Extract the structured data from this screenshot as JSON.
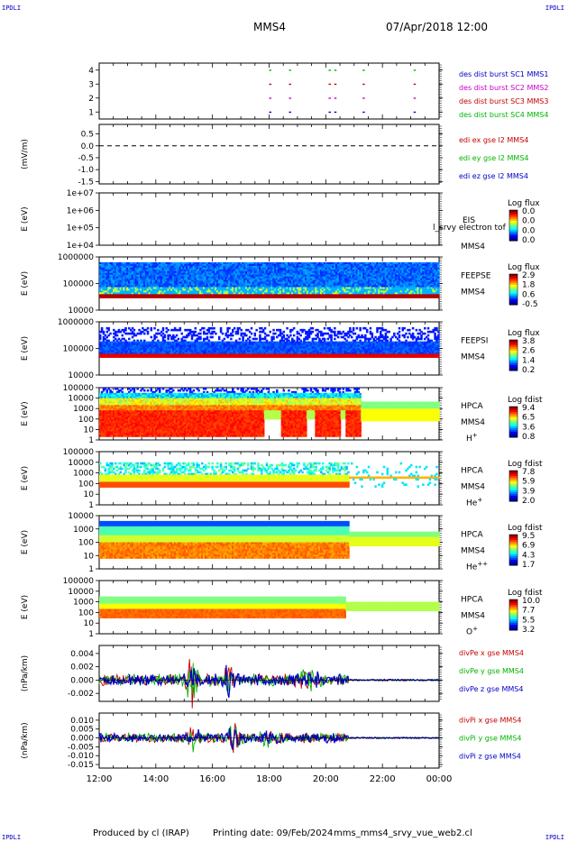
{
  "corner_label": "IPDLI",
  "header": {
    "mission": "MMS4",
    "datetime": "07/Apr/2018 12:00"
  },
  "footer": {
    "produced": "Produced by cl (IRAP)",
    "printing": "Printing date: 09/Feb/2024",
    "file": "mms_mms4_srvy_vue_web2.cl"
  },
  "x_axis": {
    "ticks": [
      "12:00",
      "14:00",
      "16:00",
      "18:00",
      "20:00",
      "22:00",
      "00:00"
    ]
  },
  "chart_data": [
    {
      "type": "scatter",
      "id": "burst",
      "ylim": [
        0.5,
        4.5
      ],
      "yticks": [
        "1",
        "2",
        "3",
        "4"
      ],
      "legend": [
        {
          "text": "des dist burst SC1 MMS1",
          "color": "#0000c8"
        },
        {
          "text": "des dist burst SC2 MMS2",
          "color": "#c800c8"
        },
        {
          "text": "des dist burst SC3 MMS3",
          "color": "#c80000"
        },
        {
          "text": "des dist burst SC4 MMS4",
          "color": "#00b400"
        }
      ],
      "x_hours": [
        18.0,
        18.7,
        20.1,
        20.3,
        21.3,
        23.1
      ]
    },
    {
      "type": "line",
      "id": "edi",
      "ylabel": "(mV/m)",
      "ylim": [
        -1.6,
        0.9
      ],
      "yticks": [
        "0.5",
        "0.0",
        "-0.5",
        "-1.0",
        "-1.5"
      ],
      "ytick_values": [
        0.5,
        0,
        -0.5,
        -1,
        -1.5
      ],
      "dashed_zero": true,
      "legend": [
        {
          "text": "edi ex gse l2 MMS4",
          "color": "#c80000"
        },
        {
          "text": "edi ey gse l2 MMS4",
          "color": "#00b400"
        },
        {
          "text": "edi ez gse l2 MMS4",
          "color": "#0000c8"
        }
      ]
    },
    {
      "type": "heatmap",
      "id": "eis",
      "ylabel": "E (eV)",
      "yticks": [
        "1e+07",
        "1e+06",
        "1e+05",
        "1e+04"
      ],
      "instrument": [
        "EIS",
        "MMS4"
      ],
      "overlay": "l_srvy electron tof",
      "cbar_title": "Log flux",
      "cbar_ticks": [
        "0.0",
        "0.0",
        "0.0",
        "0.0"
      ]
    },
    {
      "type": "heatmap",
      "id": "feepse",
      "ylabel": "E (eV)",
      "yticks": [
        "1000000",
        "100000",
        "10000"
      ],
      "instrument": [
        "FEEPSE",
        "MMS4"
      ],
      "cbar_title": "Log flux",
      "cbar_ticks": [
        "2.9",
        "1.8",
        "0.6",
        "-0.5"
      ]
    },
    {
      "type": "heatmap",
      "id": "feepsi",
      "ylabel": "E (eV)",
      "yticks": [
        "1000000",
        "100000",
        "10000"
      ],
      "instrument": [
        "FEEPSI",
        "MMS4"
      ],
      "cbar_title": "Log flux",
      "cbar_ticks": [
        "3.8",
        "2.6",
        "1.4",
        "0.2"
      ]
    },
    {
      "type": "heatmap",
      "id": "hpca_h",
      "ylabel": "E (eV)",
      "yticks": [
        "100000",
        "10000",
        "1000",
        "100",
        "10",
        "1"
      ],
      "instrument": [
        "HPCA",
        "MMS4"
      ],
      "species": "H",
      "sup": "+",
      "cbar_title": "Log fdist",
      "cbar_ticks": [
        "9.4",
        "6.5",
        "3.6",
        "0.8"
      ]
    },
    {
      "type": "heatmap",
      "id": "hpca_he1",
      "ylabel": "E (eV)",
      "yticks": [
        "100000",
        "10000",
        "1000",
        "100",
        "10",
        "1"
      ],
      "instrument": [
        "HPCA",
        "MMS4"
      ],
      "species": "He",
      "sup": "+",
      "cbar_title": "Log fdist",
      "cbar_ticks": [
        "7.8",
        "5.9",
        "3.9",
        "2.0"
      ]
    },
    {
      "type": "heatmap",
      "id": "hpca_he2",
      "ylabel": "E (eV)",
      "yticks": [
        "10000",
        "1000",
        "100",
        "10",
        "1"
      ],
      "instrument": [
        "HPCA",
        "MMS4"
      ],
      "species": "He",
      "sup": "++",
      "cbar_title": "Log fdist",
      "cbar_ticks": [
        "9.5",
        "6.9",
        "4.3",
        "1.7"
      ]
    },
    {
      "type": "heatmap",
      "id": "hpca_o",
      "ylabel": "E (eV)",
      "yticks": [
        "100000",
        "10000",
        "1000",
        "100",
        "10",
        "1"
      ],
      "instrument": [
        "HPCA",
        "MMS4"
      ],
      "species": "O",
      "sup": "+",
      "cbar_title": "Log fdist",
      "cbar_ticks": [
        "10.0",
        "7.7",
        "5.5",
        "3.2"
      ]
    },
    {
      "type": "line",
      "id": "divpe",
      "ylabel": "(nPa/km)",
      "ylim": [
        -0.0032,
        0.0052
      ],
      "yticks": [
        "0.004",
        "0.002",
        "0.000",
        "-0.002"
      ],
      "ytick_values": [
        0.004,
        0.002,
        0,
        -0.002
      ],
      "legend": [
        {
          "text": "divPe x gse MMS4",
          "color": "#c80000"
        },
        {
          "text": "divPe y gse MMS4",
          "color": "#00b400"
        },
        {
          "text": "divPe z gse MMS4",
          "color": "#0000c8"
        }
      ]
    },
    {
      "type": "line",
      "id": "divpi",
      "ylabel": "(nPa/km)",
      "ylim": [
        -0.017,
        0.014
      ],
      "yticks": [
        "0.010",
        "0.005",
        "0.000",
        "-0.005",
        "-0.010",
        "-0.015"
      ],
      "ytick_values": [
        0.01,
        0.005,
        0,
        -0.005,
        -0.01,
        -0.015
      ],
      "legend": [
        {
          "text": "divPi x gse MMS4",
          "color": "#c80000"
        },
        {
          "text": "divPi y gse MMS4",
          "color": "#00b400"
        },
        {
          "text": "divPi z gse MMS4",
          "color": "#0000c8"
        }
      ]
    }
  ]
}
